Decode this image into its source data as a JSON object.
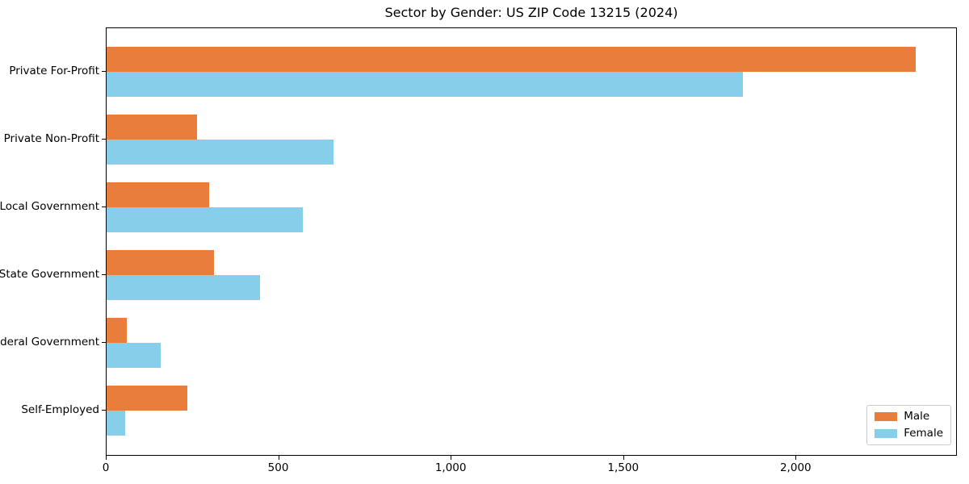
{
  "chart_data": {
    "type": "bar",
    "orientation": "horizontal",
    "title": "Sector by Gender: US ZIP Code 13215 (2024)",
    "categories": [
      "Private For-Profit",
      "Private Non-Profit",
      "Local Government",
      "State Government",
      "Federal Government",
      "Self-Employed"
    ],
    "series": [
      {
        "name": "Male",
        "color": "#e87d3c",
        "values": [
          2350,
          262,
          299,
          313,
          59,
          235
        ]
      },
      {
        "name": "Female",
        "color": "#87ceeb",
        "values": [
          1849,
          659,
          569,
          445,
          158,
          55
        ]
      }
    ],
    "xlabel": "",
    "ylabel": "",
    "xlim": [
      0,
      2467.5
    ],
    "x_ticks": [
      {
        "value": 0,
        "label": "0"
      },
      {
        "value": 500,
        "label": "500"
      },
      {
        "value": 1000,
        "label": "1,000"
      },
      {
        "value": 1500,
        "label": "1,500"
      },
      {
        "value": 2000,
        "label": "2,000"
      }
    ],
    "grid": false,
    "legend": {
      "position": "lower-right",
      "entries": [
        "Male",
        "Female"
      ]
    }
  }
}
